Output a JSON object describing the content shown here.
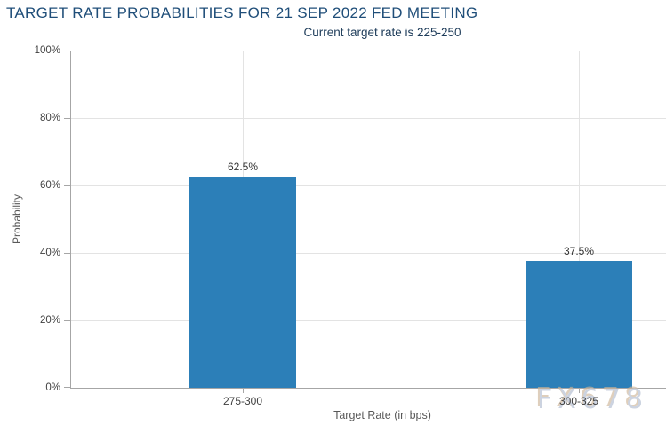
{
  "header": {
    "title": "TARGET RATE PROBABILITIES FOR 21 SEP 2022 FED MEETING",
    "subtitle": "Current target rate is 225-250"
  },
  "chart_data": {
    "type": "bar",
    "title": "TARGET RATE PROBABILITIES FOR 21 SEP 2022 FED MEETING",
    "subtitle": "Current target rate is 225-250",
    "categories": [
      "275-300",
      "300-325"
    ],
    "values": [
      62.5,
      37.5
    ],
    "data_labels": [
      "62.5%",
      "37.5%"
    ],
    "xlabel": "Target Rate (in bps)",
    "ylabel": "Probability",
    "ylim": [
      0,
      100
    ],
    "ytick_labels": [
      "0%",
      "20%",
      "40%",
      "60%",
      "80%",
      "100%"
    ],
    "grid": true,
    "legend": "none"
  },
  "watermark": {
    "text": "FX678"
  },
  "colors": {
    "title": "#1f4e79",
    "subtitle": "#1e3c5a",
    "bar": "#2c7fb8",
    "grid": "#e3e3e3",
    "axis": "#a6a6a6",
    "tick_label": "#404040",
    "axis_title": "#595959",
    "watermark": "#ccd3e0"
  }
}
